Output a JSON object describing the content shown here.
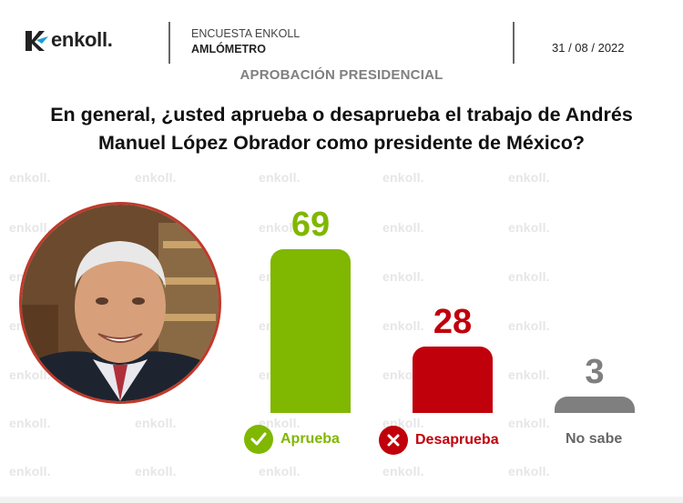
{
  "header": {
    "brand": "enkoll.",
    "survey_name": "ENCUESTA ENKOLL",
    "survey_sub": "AMLÓMETRO",
    "date": "31 / 08 / 2022"
  },
  "section_title": "APROBACIÓN PRESIDENCIAL",
  "question_line1": "En general, ¿usted aprueba o desaprueba el trabajo de Andrés",
  "question_line2": "Manuel López Obrador como presidente de México?",
  "watermark": "enkoll.",
  "colors": {
    "aprueba": "#80b700",
    "desaprueba": "#c0000b",
    "no_sabe": "#7f7f7f",
    "section": "#7f7f7f"
  },
  "icons": {
    "aprueba": "check-circle-icon",
    "desaprueba": "x-circle-icon"
  },
  "chart_data": {
    "type": "bar",
    "categories": [
      "Aprueba",
      "Desaprueba",
      "No sabe"
    ],
    "values": [
      69,
      28,
      3
    ],
    "title": "",
    "xlabel": "",
    "ylabel": "",
    "ylim": [
      0,
      69
    ],
    "grid": false,
    "legend": "below bars"
  }
}
